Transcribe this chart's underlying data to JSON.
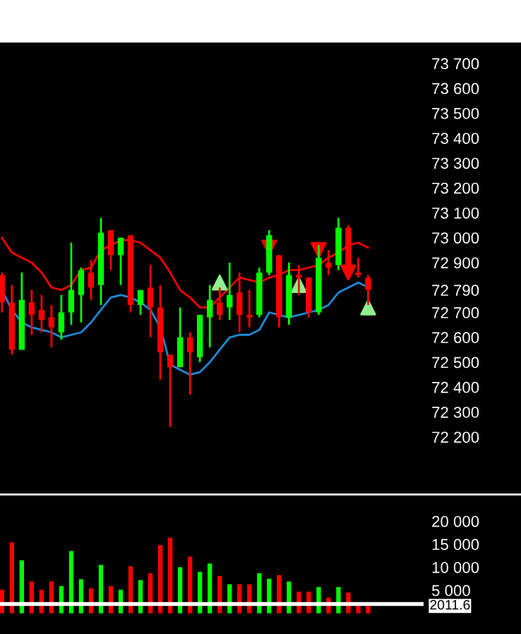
{
  "chart_data": [
    {
      "type": "candlestick",
      "categories": [
        null,
        null,
        null,
        null,
        null,
        null,
        null,
        null,
        null,
        null,
        null,
        null,
        null,
        null,
        null,
        null,
        null,
        null,
        null,
        null,
        null,
        null,
        null,
        null,
        null,
        null,
        null,
        null,
        null,
        null,
        null,
        null,
        null,
        null,
        null,
        null,
        null,
        null
      ],
      "ohlc": [
        [
          72850,
          72860,
          72700,
          72740
        ],
        [
          72740,
          72810,
          72530,
          72550
        ],
        [
          72550,
          72860,
          72550,
          72750
        ],
        [
          72740,
          72790,
          72610,
          72690
        ],
        [
          72710,
          72770,
          72620,
          72670
        ],
        [
          72680,
          72730,
          72560,
          72640
        ],
        [
          72620,
          72770,
          72590,
          72700
        ],
        [
          72700,
          72980,
          72650,
          72790
        ],
        [
          72770,
          72880,
          72660,
          72870
        ],
        [
          72860,
          72910,
          72750,
          72800
        ],
        [
          72810,
          73080,
          72730,
          73020
        ],
        [
          73030,
          73030,
          72870,
          72930
        ],
        [
          72930,
          73000,
          72810,
          73000
        ],
        [
          73010,
          73010,
          72700,
          72730
        ],
        [
          72730,
          72790,
          72690,
          72790
        ],
        [
          72800,
          72890,
          72600,
          72720
        ],
        [
          72720,
          72810,
          72430,
          72540
        ],
        [
          72530,
          72530,
          72240,
          72480
        ],
        [
          72480,
          72720,
          72480,
          72600
        ],
        [
          72600,
          72620,
          72370,
          72540
        ],
        [
          72520,
          72690,
          72500,
          72690
        ],
        [
          72680,
          72810,
          72560,
          72750
        ],
        [
          72740,
          72800,
          72670,
          72690
        ],
        [
          72720,
          72900,
          72670,
          72770
        ],
        [
          72780,
          72860,
          72620,
          72690
        ],
        [
          72690,
          72790,
          72640,
          72680
        ],
        [
          72690,
          72880,
          72680,
          72860
        ],
        [
          72860,
          73030,
          72850,
          73010
        ],
        [
          72930,
          72930,
          72640,
          72680
        ],
        [
          72680,
          72900,
          72650,
          72850
        ],
        [
          72850,
          72890,
          72770,
          72840
        ],
        [
          72840,
          72840,
          72680,
          72700
        ],
        [
          72700,
          72970,
          72690,
          72920
        ],
        [
          72900,
          72950,
          72850,
          72880
        ],
        [
          72890,
          73080,
          72870,
          73040
        ],
        [
          73040,
          73050,
          72830,
          72870
        ],
        [
          72860,
          72920,
          72840,
          72850
        ],
        [
          72840,
          72850,
          72730,
          72790
        ]
      ],
      "colors": [
        "#ff0000",
        "#ff0000",
        "#00ff00",
        "#ff0000",
        "#ff0000",
        "#ff0000",
        "#00ff00",
        "#00ff00",
        "#00ff00",
        "#ff0000",
        "#00ff00",
        "#ff0000",
        "#00ff00",
        "#ff0000",
        "#00ff00",
        "#ff0000",
        "#ff0000",
        "#ff0000",
        "#00ff00",
        "#ff0000",
        "#00ff00",
        "#00ff00",
        "#ff0000",
        "#00ff00",
        "#ff0000",
        "#ff0000",
        "#00ff00",
        "#00ff00",
        "#ff0000",
        "#00ff00",
        "#ff0000",
        "#ff0000",
        "#00ff00",
        "#ff0000",
        "#00ff00",
        "#ff0000",
        "#ff0000",
        "#ff0000"
      ],
      "series": [
        {
          "type": "line",
          "color": "#ff0000",
          "values": [
            73000,
            72940,
            72920,
            72900,
            72860,
            72800,
            72790,
            72810,
            72870,
            72880,
            72950,
            72970,
            72990,
            72990,
            72980,
            72950,
            72920,
            72860,
            72790,
            72760,
            72720,
            72720,
            72760,
            72800,
            72840,
            72830,
            72820,
            72840,
            72850,
            72870,
            72870,
            72880,
            72890,
            72920,
            72940,
            72970,
            72980,
            72960
          ]
        },
        {
          "type": "line",
          "color": "#1e8ad6",
          "values": [
            72790,
            72710,
            72660,
            72640,
            72630,
            72620,
            72600,
            72610,
            72620,
            72660,
            72710,
            72760,
            72770,
            72760,
            72740,
            72710,
            72640,
            72490,
            72470,
            72450,
            72460,
            72500,
            72550,
            72600,
            72610,
            72610,
            72630,
            72700,
            72690,
            72680,
            72690,
            72700,
            72710,
            72730,
            72780,
            72800,
            72820,
            72800
          ]
        },
        {
          "type": "scatter",
          "color": "#90ee90",
          "marker": "triangle",
          "values": [
            null,
            null,
            null,
            null,
            null,
            null,
            null,
            null,
            null,
            null,
            null,
            null,
            null,
            null,
            null,
            null,
            null,
            null,
            null,
            null,
            null,
            null,
            72820,
            null,
            null,
            null,
            null,
            null,
            null,
            null,
            72810,
            null,
            null,
            null,
            null,
            null,
            null,
            72720
          ]
        },
        {
          "type": "scatter",
          "color": "#ff0000",
          "marker": "triangle_down",
          "values": [
            null,
            null,
            null,
            null,
            null,
            null,
            null,
            null,
            null,
            null,
            null,
            null,
            null,
            null,
            null,
            null,
            null,
            null,
            null,
            null,
            null,
            null,
            null,
            null,
            null,
            null,
            null,
            72960,
            null,
            null,
            null,
            null,
            72950,
            null,
            null,
            72860,
            null,
            null
          ]
        }
      ],
      "ylim": [
        71970,
        73700
      ],
      "yticks": [
        {
          "value": 73700,
          "label": "73 700"
        },
        {
          "value": 73600,
          "label": "73 600"
        },
        {
          "value": 73500,
          "label": "73 500"
        },
        {
          "value": 73400,
          "label": "73 400"
        },
        {
          "value": 73300,
          "label": "73 300"
        },
        {
          "value": 73200,
          "label": "73 200"
        },
        {
          "value": 73100,
          "label": "73 100"
        },
        {
          "value": 73000,
          "label": "73 000"
        },
        {
          "value": 72900,
          "label": "72 900"
        },
        {
          "value": 72790,
          "label": "72 790"
        },
        {
          "value": 72700,
          "label": "72 700"
        },
        {
          "value": 72600,
          "label": "72 600"
        },
        {
          "value": 72500,
          "label": "72 500"
        },
        {
          "value": 72400,
          "label": "72 400"
        },
        {
          "value": 72300,
          "label": "72 300"
        },
        {
          "value": 72200,
          "label": "72 200"
        }
      ],
      "tick_labels": "y"
    },
    {
      "type": "bar",
      "categories": [
        null,
        null,
        null,
        null,
        null,
        null,
        null,
        null,
        null,
        null,
        null,
        null,
        null,
        null,
        null,
        null,
        null,
        null,
        null,
        null,
        null,
        null,
        null,
        null,
        null,
        null,
        null,
        null,
        null,
        null,
        null,
        null,
        null,
        null,
        null,
        null,
        null,
        null
      ],
      "values": [
        5100,
        15400,
        11500,
        6900,
        5100,
        6900,
        5900,
        13500,
        7400,
        5400,
        10500,
        5900,
        5100,
        10200,
        7200,
        8700,
        14800,
        16400,
        10000,
        12300,
        9000,
        10800,
        8100,
        6300,
        6300,
        6300,
        8700,
        7500,
        8300,
        6900,
        4700,
        4700,
        5700,
        3400,
        5700,
        4500,
        1900,
        1900
      ],
      "colors": [
        "#ff0000",
        "#ff0000",
        "#00ff00",
        "#ff0000",
        "#ff0000",
        "#ff0000",
        "#00ff00",
        "#00ff00",
        "#00ff00",
        "#ff0000",
        "#00ff00",
        "#ff0000",
        "#00ff00",
        "#ff0000",
        "#00ff00",
        "#ff0000",
        "#ff0000",
        "#ff0000",
        "#00ff00",
        "#ff0000",
        "#00ff00",
        "#00ff00",
        "#ff0000",
        "#00ff00",
        "#ff0000",
        "#ff0000",
        "#00ff00",
        "#00ff00",
        "#ff0000",
        "#00ff00",
        "#ff0000",
        "#ff0000",
        "#00ff00",
        "#ff0000",
        "#00ff00",
        "#ff0000",
        "#ff0000",
        "#ff0000"
      ],
      "ylim": [
        -4500,
        20000
      ],
      "yticks": [
        {
          "value": 20000,
          "label": "20 000"
        },
        {
          "value": 15000,
          "label": "15 000"
        },
        {
          "value": 10000,
          "label": "10 000"
        },
        {
          "value": 5000,
          "label": "5 000"
        }
      ],
      "ref_lines": [
        {
          "axis": "y",
          "value": 2011.6,
          "label": "2011.6",
          "color": "#ffffff"
        }
      ],
      "tick_labels": "y"
    }
  ]
}
